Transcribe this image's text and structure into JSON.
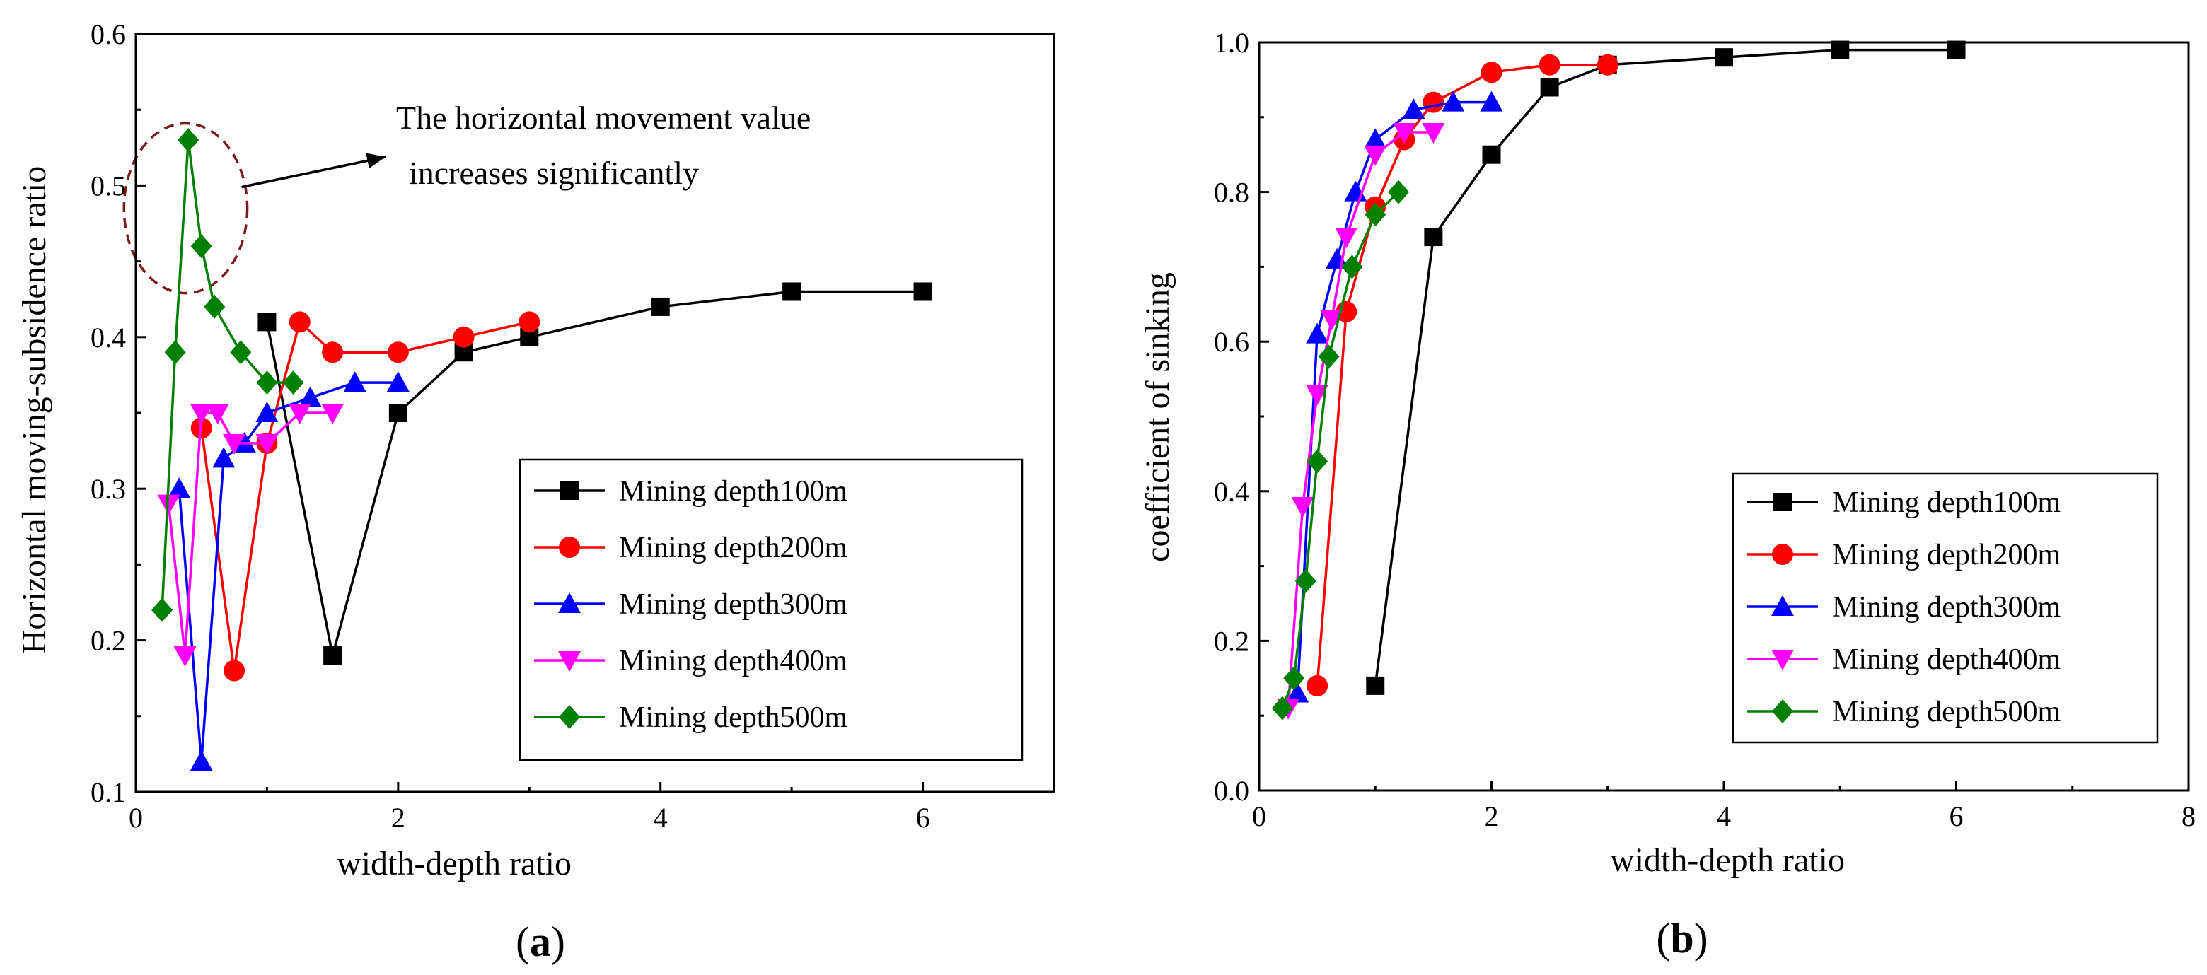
{
  "chart_data": [
    {
      "id": "a",
      "type": "line",
      "panel_label": "a",
      "xlabel": "width-depth ratio",
      "ylabel": "Horizontal moving-subsidence ratio",
      "xlim": [
        0,
        7
      ],
      "ylim": [
        0.1,
        0.6
      ],
      "xticks": [
        0,
        2,
        4,
        6
      ],
      "yticks": [
        0.1,
        0.2,
        0.3,
        0.4,
        0.5,
        0.6
      ],
      "xtick_labels": [
        "0",
        "2",
        "4",
        "6"
      ],
      "ytick_labels": [
        "0.1",
        "0.2",
        "0.3",
        "0.4",
        "0.5",
        "0.6"
      ],
      "legend_position": "bottom-right",
      "annotation": {
        "lines": [
          "The horizontal movement value",
          "increases significantly"
        ],
        "ellipse_center": [
          0.38,
          0.485
        ],
        "ellipse_radii": [
          0.47,
          0.056
        ]
      },
      "series": [
        {
          "name": "Mining depth100m",
          "color": "#000000",
          "marker": "square",
          "x": [
            1,
            1.5,
            2,
            2.5,
            3,
            4,
            5,
            6
          ],
          "y": [
            0.41,
            0.19,
            0.35,
            0.39,
            0.4,
            0.42,
            0.43,
            0.43
          ]
        },
        {
          "name": "Mining depth200m",
          "color": "#ff0000",
          "marker": "circle",
          "x": [
            0.5,
            0.75,
            1,
            1.25,
            1.5,
            2,
            2.5,
            3
          ],
          "y": [
            0.34,
            0.18,
            0.33,
            0.41,
            0.39,
            0.39,
            0.4,
            0.41
          ]
        },
        {
          "name": "Mining depth300m",
          "color": "#0000ff",
          "marker": "triangle-up",
          "x": [
            0.33,
            0.5,
            0.67,
            0.83,
            1,
            1.33,
            1.67,
            2
          ],
          "y": [
            0.3,
            0.12,
            0.32,
            0.33,
            0.35,
            0.36,
            0.37,
            0.37
          ]
        },
        {
          "name": "Mining depth400m",
          "color": "#ff00ff",
          "marker": "triangle-down",
          "x": [
            0.25,
            0.375,
            0.5,
            0.625,
            0.75,
            1,
            1.25,
            1.5
          ],
          "y": [
            0.29,
            0.19,
            0.35,
            0.35,
            0.33,
            0.33,
            0.35,
            0.35
          ]
        },
        {
          "name": "Mining depth500m",
          "color": "#008000",
          "marker": "diamond",
          "x": [
            0.2,
            0.3,
            0.4,
            0.5,
            0.6,
            0.8,
            1,
            1.2
          ],
          "y": [
            0.22,
            0.39,
            0.53,
            0.46,
            0.42,
            0.39,
            0.37,
            0.37
          ]
        }
      ]
    },
    {
      "id": "b",
      "type": "line",
      "panel_label": "b",
      "xlabel": "width-depth ratio",
      "ylabel": "coefficient of sinking",
      "xlim": [
        0,
        8
      ],
      "ylim": [
        0,
        1.0
      ],
      "xticks": [
        0,
        2,
        4,
        6,
        8
      ],
      "yticks": [
        0,
        0.2,
        0.4,
        0.6,
        0.8,
        1.0
      ],
      "xtick_labels": [
        "0",
        "2",
        "4",
        "6",
        "8"
      ],
      "ytick_labels": [
        "0.0",
        "0.2",
        "0.4",
        "0.6",
        "0.8",
        "1.0"
      ],
      "legend_position": "bottom-right",
      "series": [
        {
          "name": "Mining depth100m",
          "color": "#000000",
          "marker": "square",
          "x": [
            1,
            1.5,
            2,
            2.5,
            3,
            4,
            5,
            6
          ],
          "y": [
            0.14,
            0.74,
            0.85,
            0.94,
            0.97,
            0.98,
            0.99,
            0.99
          ]
        },
        {
          "name": "Mining depth200m",
          "color": "#ff0000",
          "marker": "circle",
          "x": [
            0.5,
            0.75,
            1,
            1.25,
            1.5,
            2,
            2.5,
            3
          ],
          "y": [
            0.14,
            0.64,
            0.78,
            0.87,
            0.92,
            0.96,
            0.97,
            0.97
          ]
        },
        {
          "name": "Mining depth300m",
          "color": "#0000ff",
          "marker": "triangle-up",
          "x": [
            0.33,
            0.5,
            0.67,
            0.83,
            1,
            1.33,
            1.67,
            2
          ],
          "y": [
            0.13,
            0.61,
            0.71,
            0.8,
            0.87,
            0.91,
            0.92,
            0.92
          ]
        },
        {
          "name": "Mining depth400m",
          "color": "#ff00ff",
          "marker": "triangle-down",
          "x": [
            0.25,
            0.375,
            0.5,
            0.625,
            0.75,
            1,
            1.25,
            1.5
          ],
          "y": [
            0.11,
            0.38,
            0.53,
            0.63,
            0.74,
            0.85,
            0.88,
            0.88
          ]
        },
        {
          "name": "Mining depth500m",
          "color": "#008000",
          "marker": "diamond",
          "x": [
            0.2,
            0.3,
            0.4,
            0.5,
            0.6,
            0.8,
            1,
            1.2
          ],
          "y": [
            0.11,
            0.15,
            0.28,
            0.44,
            0.58,
            0.7,
            0.77,
            0.8
          ]
        }
      ]
    }
  ]
}
